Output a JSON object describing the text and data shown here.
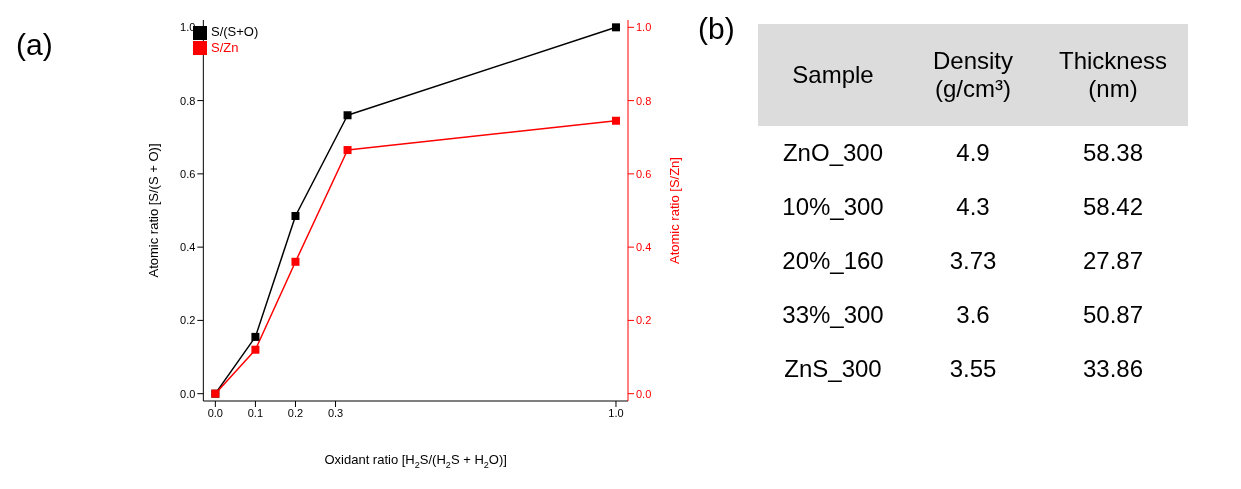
{
  "chart_data": [
    {
      "type": "line",
      "title": "(a)",
      "xlabel": "Oxidant ratio [H$_{2}$S/(H$_{2}$S + H$_{2}$O)]",
      "ylabel": "Atomic ratio [S/(S + O)]",
      "y2label": "Atomic ratio [S/Zn]",
      "x": [
        0,
        0.1,
        0.2,
        0.33,
        1.0
      ],
      "series": [
        {
          "name": "S/(S+O)",
          "color": "#000000",
          "values": [
            0,
            0.155,
            0.485,
            0.76,
            1.0
          ]
        },
        {
          "name": "S/Zn",
          "color": "#ff0000",
          "axis": "y2",
          "values": [
            0,
            0.12,
            0.36,
            0.665,
            0.745
          ]
        }
      ],
      "xlim": [
        -0.03,
        1.03
      ],
      "xticks": [
        {
          "value": 0,
          "label": "0.0"
        },
        0.1,
        0.2,
        0.3,
        {
          "value": 1,
          "label": "1.0"
        }
      ],
      "ylim": [
        -0.02,
        1.02
      ],
      "yticks": [
        {
          "value": 0,
          "label": "0.0"
        },
        0.2,
        0.4,
        0.6,
        0.8,
        {
          "value": 1,
          "label": "1.0"
        }
      ],
      "y2lim": [
        -0.02,
        1.02
      ],
      "y2ticks": [
        {
          "value": 0,
          "label": "0.0"
        },
        0.2,
        0.4,
        0.6,
        0.8,
        {
          "value": 1,
          "label": "1.0"
        }
      ],
      "legend": "top left",
      "marker": "square"
    },
    {
      "type": "other",
      "title": "(b)",
      "annotations": [
        "Sample",
        "Density (g/cm³)",
        "Thickness (nm)",
        "ZnO_300",
        "4.9",
        "58.38",
        "10%_300",
        "4.3",
        "58.42",
        "20%_160",
        "3.73",
        "27.87",
        "33%_300",
        "3.6",
        "50.87",
        "ZnS_300",
        "3.55",
        "33.86"
      ]
    }
  ]
}
